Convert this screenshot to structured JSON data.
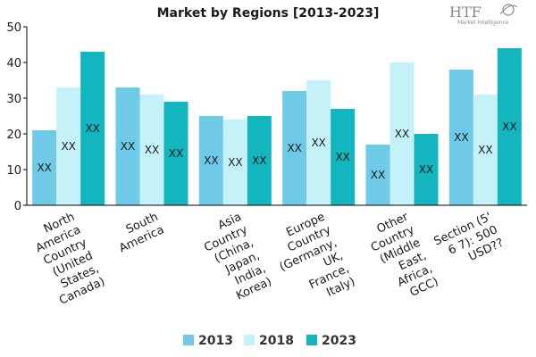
{
  "logo": {
    "text": "HTF",
    "subtitle": "Market Intelligence",
    "color": "#8a8a8a"
  },
  "chart_data": {
    "type": "bar",
    "title": "Market by Regions [2013-2023]",
    "categories": [
      [
        "North",
        "America",
        "Country",
        "(United",
        "States,",
        "Canada)"
      ],
      [
        "South",
        "America"
      ],
      [
        "Asia",
        "Country",
        "(China,",
        "Japan,",
        "India,",
        "Korea)"
      ],
      [
        "Europe",
        "Country",
        "(Germany,",
        "UK,",
        "France,",
        "Italy)"
      ],
      [
        "Other",
        "Country",
        "(Middle",
        "East,",
        "Africa,",
        "GCC)"
      ],
      [
        "Section (5'",
        "6 7): 500",
        "USD??"
      ]
    ],
    "series": [
      {
        "name": "2013",
        "color": "#6ecae6",
        "values": [
          21,
          33,
          25,
          32,
          17,
          38
        ],
        "labels": [
          "XX",
          "XX",
          "XX",
          "XX",
          "XX",
          "XX"
        ]
      },
      {
        "name": "2018",
        "color": "#c4f2f8",
        "values": [
          33,
          31,
          24,
          35,
          40,
          31
        ],
        "labels": [
          "XX",
          "XX",
          "XX",
          "XX",
          "XX",
          "XX"
        ]
      },
      {
        "name": "2023",
        "color": "#13b5bf",
        "values": [
          43,
          29,
          25,
          27,
          20,
          44
        ],
        "labels": [
          "XX",
          "XX",
          "XX",
          "XX",
          "XX",
          "XX"
        ]
      }
    ],
    "ylim": [
      0,
      50
    ],
    "yticks": [
      0,
      10,
      20,
      30,
      40,
      50
    ],
    "grid": false,
    "legend": "bottom-center"
  }
}
